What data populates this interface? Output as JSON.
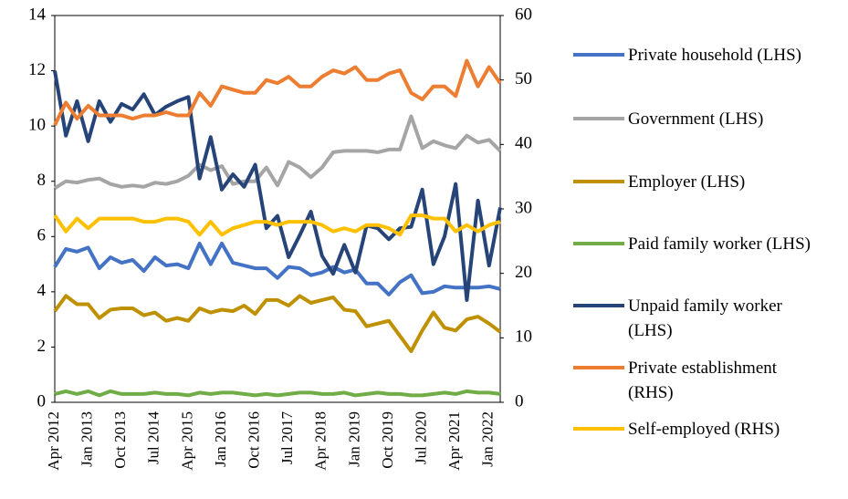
{
  "chart_data": {
    "type": "line",
    "categories": [
      "Apr 2012",
      null,
      null,
      "Jan 2013",
      null,
      null,
      "Oct 2013",
      null,
      null,
      "Jul 2014",
      null,
      null,
      "Apr 2015",
      null,
      null,
      "Jan 2016",
      null,
      null,
      "Oct 2016",
      null,
      null,
      "Jul 2017",
      null,
      null,
      "Apr 2018",
      null,
      null,
      "Jan 2019",
      null,
      null,
      "Oct 2019",
      null,
      null,
      "Jul 2020",
      null,
      null,
      "Apr 2021",
      null,
      null,
      "Jan 2022",
      null
    ],
    "ylim": [
      0,
      14
    ],
    "yticks": [
      0,
      2,
      4,
      6,
      8,
      10,
      12,
      14
    ],
    "y2lim": [
      0,
      60
    ],
    "y2ticks": [
      0,
      10,
      20,
      30,
      40,
      50,
      60
    ],
    "grid": false,
    "legend": "right",
    "series": [
      {
        "name": "Private household (LHS)",
        "color": "#4472c4",
        "values": [
          4.9,
          5.55,
          5.45,
          5.6,
          4.85,
          5.25,
          5.05,
          5.15,
          4.75,
          5.25,
          4.95,
          5.0,
          4.85,
          5.75,
          5.0,
          5.75,
          5.05,
          4.95,
          4.85,
          4.85,
          4.5,
          4.9,
          4.85,
          4.6,
          4.7,
          4.9,
          4.7,
          4.8,
          4.3,
          4.3,
          3.9,
          4.35,
          4.6,
          3.95,
          4.0,
          4.2,
          4.15,
          4.15,
          4.15,
          4.2,
          4.1
        ]
      },
      {
        "name": "Government (LHS)",
        "color": "#a5a5a5",
        "values": [
          7.75,
          8.0,
          7.95,
          8.05,
          8.1,
          7.9,
          7.8,
          7.85,
          7.8,
          7.95,
          7.9,
          8.0,
          8.2,
          8.6,
          8.4,
          8.55,
          7.9,
          8.0,
          8.0,
          8.5,
          7.85,
          8.7,
          8.5,
          8.15,
          8.5,
          9.05,
          9.1,
          9.1,
          9.1,
          9.05,
          9.15,
          9.15,
          10.35,
          9.2,
          9.45,
          9.3,
          9.2,
          9.65,
          9.4,
          9.5,
          9.1
        ]
      },
      {
        "name": "Employer (LHS)",
        "color": "#bf9000",
        "values": [
          3.3,
          3.85,
          3.55,
          3.55,
          3.05,
          3.35,
          3.4,
          3.4,
          3.15,
          3.25,
          2.95,
          3.05,
          2.95,
          3.4,
          3.25,
          3.35,
          3.3,
          3.5,
          3.2,
          3.7,
          3.7,
          3.5,
          3.85,
          3.6,
          3.7,
          3.8,
          3.35,
          3.3,
          2.75,
          2.85,
          2.95,
          2.4,
          1.85,
          2.6,
          3.25,
          2.7,
          2.6,
          3.0,
          3.1,
          2.85,
          2.55
        ]
      },
      {
        "name": "Paid family worker (LHS)",
        "color": "#70ad47",
        "values": [
          0.3,
          0.4,
          0.3,
          0.4,
          0.25,
          0.4,
          0.3,
          0.3,
          0.3,
          0.35,
          0.3,
          0.3,
          0.25,
          0.35,
          0.3,
          0.35,
          0.35,
          0.3,
          0.25,
          0.3,
          0.25,
          0.3,
          0.35,
          0.35,
          0.3,
          0.3,
          0.35,
          0.25,
          0.3,
          0.35,
          0.3,
          0.3,
          0.25,
          0.25,
          0.3,
          0.35,
          0.3,
          0.4,
          0.35,
          0.35,
          0.3
        ]
      },
      {
        "name": "Unpaid family worker (LHS)",
        "color": "#264478",
        "values": [
          12.0,
          9.65,
          10.9,
          9.45,
          10.9,
          10.15,
          10.8,
          10.6,
          11.15,
          10.4,
          10.7,
          10.9,
          11.05,
          8.1,
          9.6,
          7.7,
          8.25,
          7.8,
          8.6,
          6.3,
          6.75,
          5.25,
          6.05,
          6.9,
          5.3,
          4.65,
          5.7,
          4.7,
          6.4,
          6.3,
          5.9,
          6.3,
          6.35,
          7.7,
          5.0,
          6.0,
          7.9,
          3.7,
          7.3,
          4.95,
          7.05
        ]
      },
      {
        "name": "Private establishment (RHS)",
        "color": "#ed7d31",
        "axis": "y2",
        "values": [
          43,
          46.5,
          44,
          46,
          44.5,
          44.5,
          44.5,
          44,
          44.5,
          44.5,
          45,
          44.5,
          44.5,
          48,
          46,
          49,
          48.5,
          48,
          48,
          50,
          49.5,
          50.5,
          49,
          49,
          50.5,
          51.5,
          51,
          52,
          50,
          50,
          51,
          51.5,
          48,
          47,
          49,
          49,
          47.5,
          53,
          49,
          52,
          49.5
        ]
      },
      {
        "name": "Self-employed (RHS)",
        "color": "#ffc000",
        "axis": "y2",
        "values": [
          29,
          26.5,
          28.5,
          27,
          28.5,
          28.5,
          28.5,
          28.5,
          28,
          28,
          28.5,
          28.5,
          28,
          26,
          28,
          26,
          27,
          27.5,
          28,
          28,
          27.5,
          28,
          28,
          28,
          27.5,
          26.5,
          27,
          26.5,
          27.5,
          27.5,
          27,
          26,
          29,
          29,
          28.5,
          28.5,
          26.5,
          27.5,
          26.5,
          27.5,
          28
        ]
      }
    ]
  }
}
